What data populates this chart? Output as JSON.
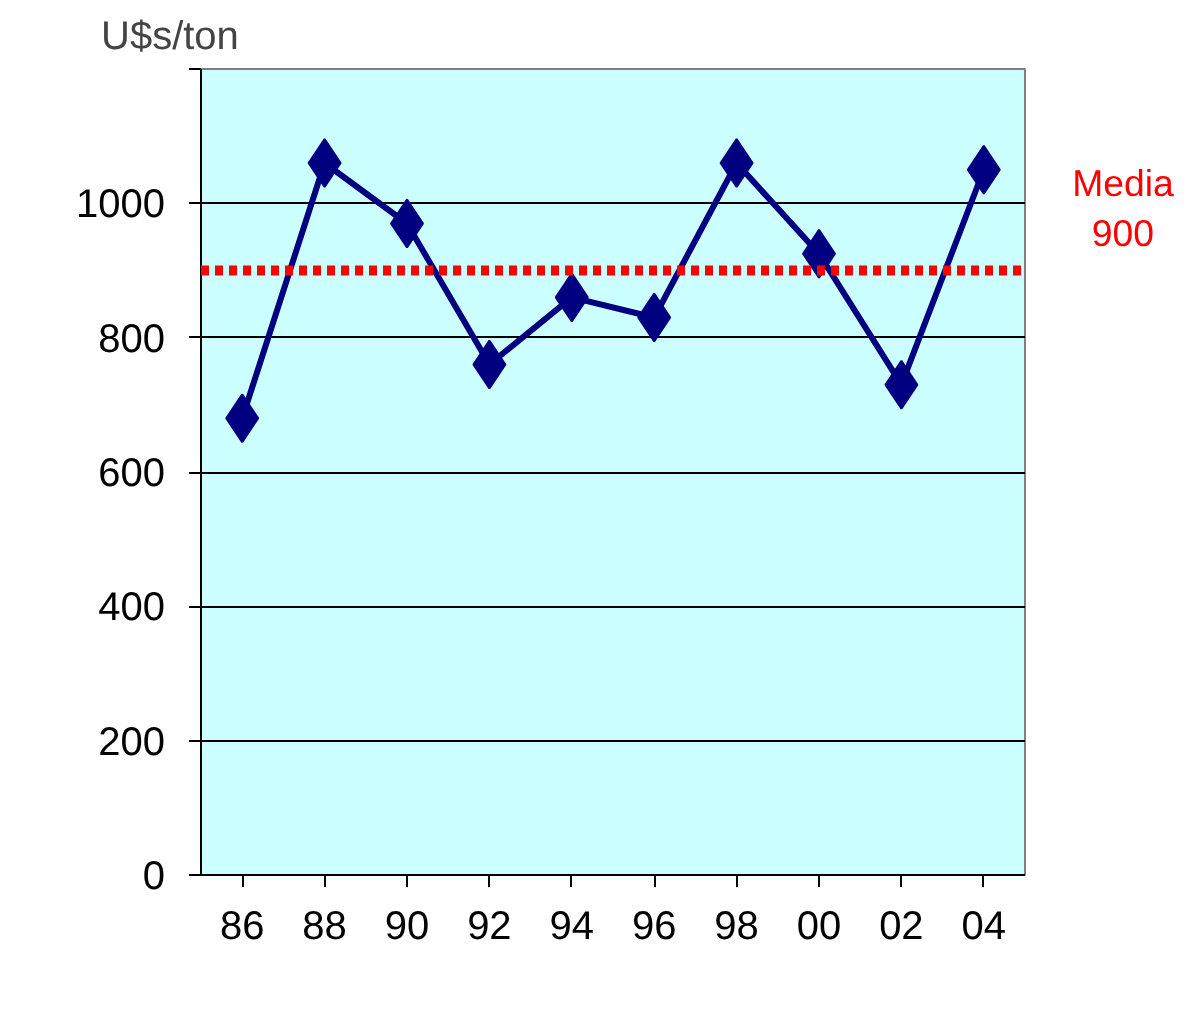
{
  "chart_data": {
    "type": "line",
    "ylabel": "U$s/ton",
    "categories": [
      "86",
      "88",
      "90",
      "92",
      "94",
      "96",
      "98",
      "00",
      "02",
      "04"
    ],
    "series": [
      {
        "color": "#000080",
        "values": [
          680,
          1060,
          970,
          760,
          860,
          830,
          1060,
          925,
          730,
          1050
        ]
      }
    ],
    "ylim": [
      0,
      1200
    ],
    "yticks": [
      0,
      200,
      400,
      600,
      800,
      1000,
      {
        "value": 1200,
        "label": null
      }
    ],
    "grid": "y",
    "marker": "diamond",
    "line_style": "solid",
    "ref_lines": [
      {
        "axis": "y",
        "value": 900,
        "label": "Media\n900",
        "color": "#ff0000",
        "line_style": "dotted"
      }
    ]
  }
}
